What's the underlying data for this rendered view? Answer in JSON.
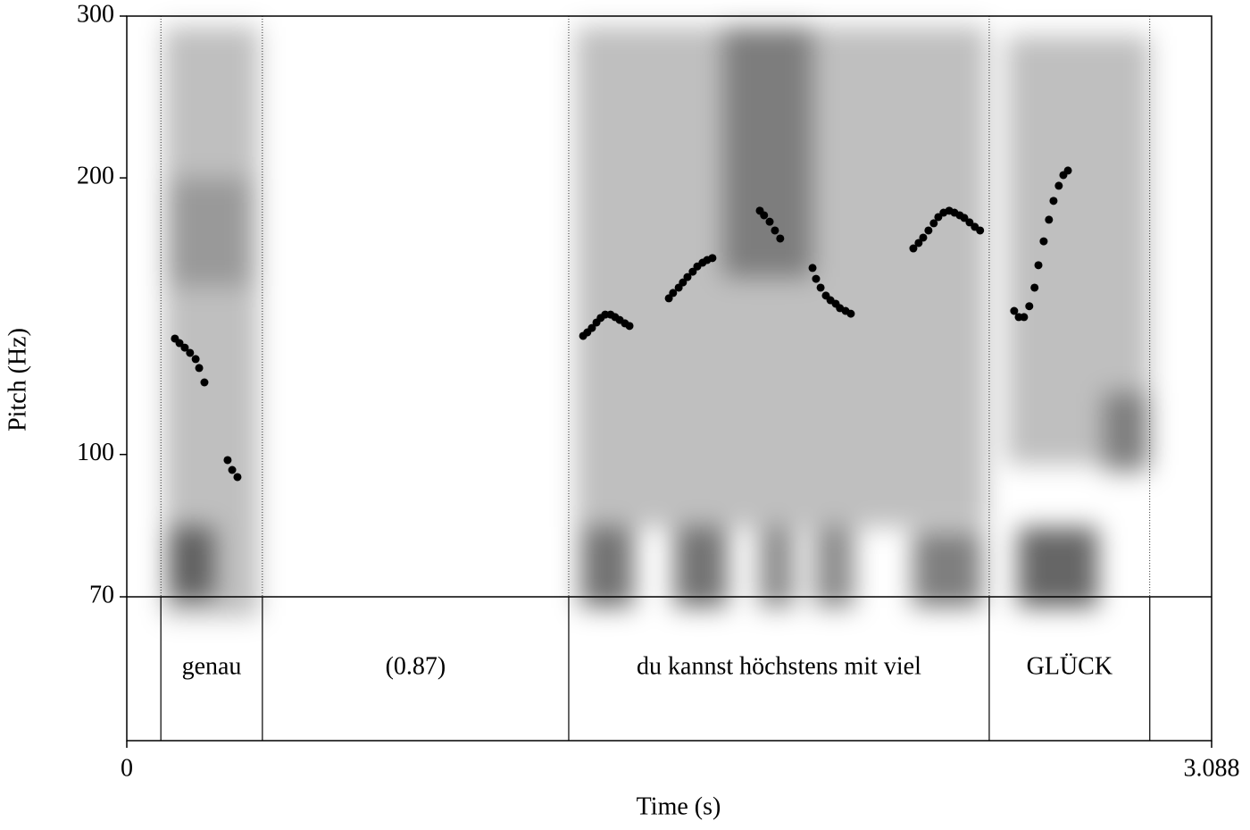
{
  "chart_data": {
    "type": "scatter",
    "xlabel": "Time (s)",
    "ylabel": "Pitch (Hz)",
    "xlim": [
      0,
      3.088
    ],
    "xticks": [
      0,
      3.088
    ],
    "ylim": [
      70,
      300
    ],
    "yticks": [
      70,
      100,
      200,
      300
    ],
    "ylog": true,
    "series": [
      {
        "color": "#000000",
        "x": [
          0.137,
          0.15,
          0.165,
          0.18,
          0.196,
          0.206,
          0.221,
          0.287,
          0.3,
          0.315,
          1.299,
          1.311,
          1.324,
          1.337,
          1.349,
          1.362,
          1.377,
          1.39,
          1.403,
          1.418,
          1.431,
          1.543,
          1.555,
          1.571,
          1.583,
          1.596,
          1.611,
          1.624,
          1.639,
          1.652,
          1.667,
          1.802,
          1.814,
          1.83,
          1.845,
          1.86,
          1.952,
          1.962,
          1.975,
          1.99,
          2.003,
          2.018,
          2.03,
          2.046,
          2.061,
          2.239,
          2.254,
          2.267,
          2.282,
          2.297,
          2.31,
          2.325,
          2.341,
          2.356,
          2.371,
          2.384,
          2.399,
          2.414,
          2.429,
          2.526,
          2.539,
          2.554,
          2.569,
          2.584,
          2.595,
          2.61,
          2.625,
          2.638,
          2.653,
          2.666,
          2.679
        ],
        "values": [
          133.7,
          132.2,
          130.7,
          129.0,
          127.0,
          124.2,
          119.8,
          98.6,
          96.2,
          94.5,
          134.6,
          135.8,
          137.3,
          139.2,
          140.8,
          142.0,
          142.0,
          141.1,
          140.1,
          138.9,
          138.0,
          147.9,
          149.9,
          151.9,
          153.9,
          156.0,
          158.1,
          160.2,
          161.7,
          162.8,
          163.6,
          184.2,
          182.1,
          179.2,
          175.3,
          171.8,
          159.6,
          155.3,
          151.9,
          148.9,
          147.2,
          145.9,
          144.3,
          143.3,
          142.3,
          167.6,
          169.9,
          172.2,
          175.3,
          178.5,
          181.3,
          183.3,
          184.2,
          183.3,
          182.1,
          180.9,
          178.9,
          176.9,
          175.3,
          143.3,
          141.1,
          141.1,
          145.0,
          151.9,
          160.7,
          170.6,
          180.1,
          188.8,
          196.1,
          201.4,
          203.7
        ]
      }
    ],
    "boundaries": [
      0.097,
      0.386,
      1.258,
      2.455,
      2.912
    ],
    "interval_labels": [
      "genau",
      "(0.87)",
      "du kannst höchstens mit viel",
      "GLÜCK"
    ]
  }
}
